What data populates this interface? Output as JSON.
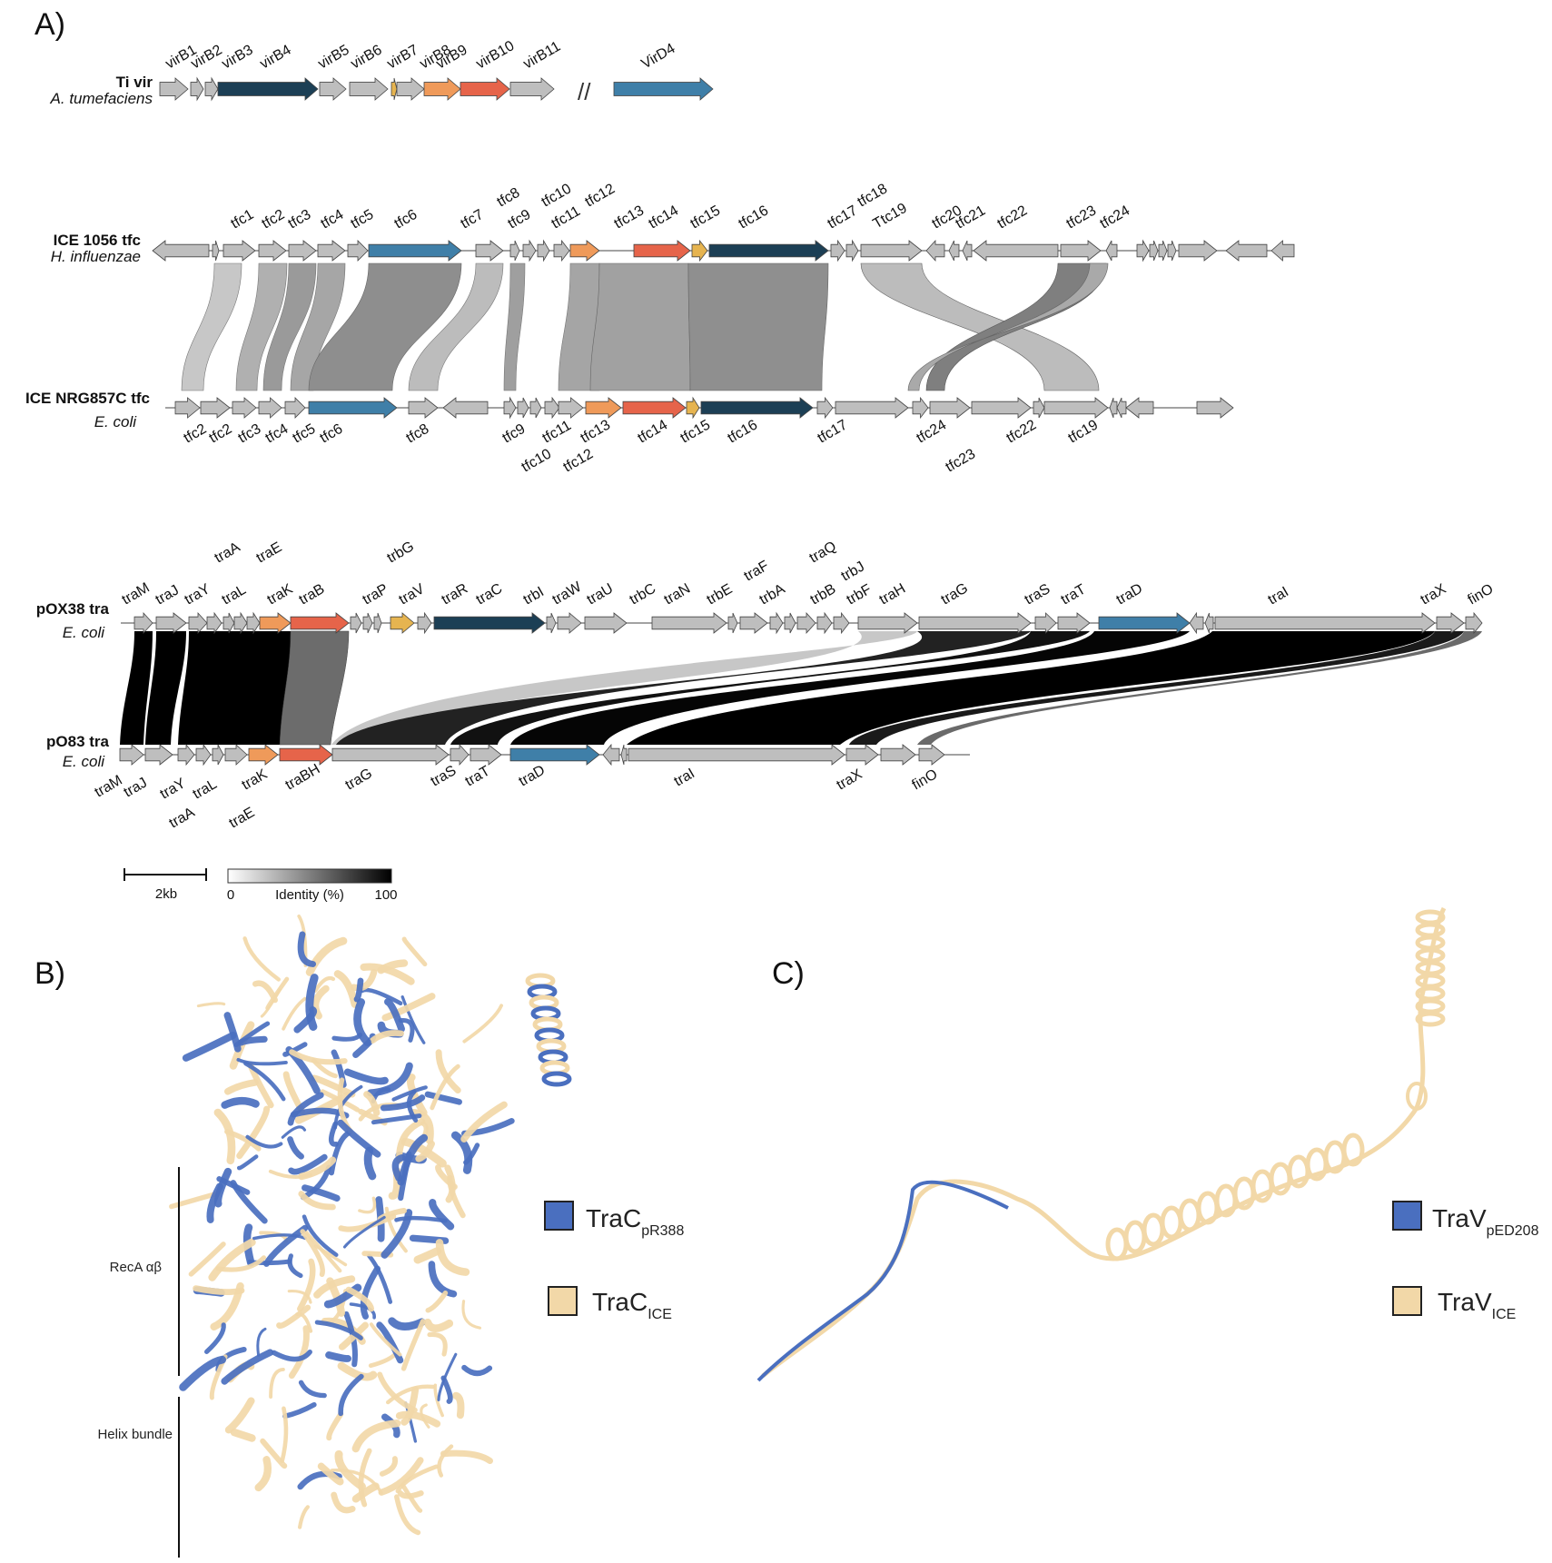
{
  "panels": {
    "a": "A)",
    "b": "B)",
    "c": "C)"
  },
  "colors": {
    "grey": "#bebebe",
    "dark": "#1c3f55",
    "blue": "#3f7fa8",
    "orange": "#ef9a5a",
    "red": "#e6644a",
    "yellow": "#e6b450",
    "tracICE": "#f2d8a8",
    "trac388": "#4a6fbf"
  },
  "tracks": [
    {
      "name": "Ti vir",
      "organism": "A. tumefaciens"
    },
    {
      "name": "ICE 1056 tfc",
      "organism": "H. influenzae"
    },
    {
      "name": "ICE NRG857C tfc",
      "organism": "E. coli"
    },
    {
      "name": "pOX38 tra",
      "organism": "E. coli"
    },
    {
      "name": "pO83 tra",
      "organism": "E. coli"
    }
  ],
  "labels_ti": [
    "virB1",
    "virB2",
    "virB3",
    "virB4",
    "virB5",
    "virB6",
    "virB7",
    "virB8",
    "virB9",
    "virB10",
    "virB11",
    "VirD4"
  ],
  "labels_ice1056": [
    "tfc1",
    "tfc2",
    "tfc3",
    "tfc4",
    "tfc5",
    "tfc6",
    "tfc7",
    "tfc8",
    "tfc9",
    "tfc10",
    "tfc11",
    "tfc12",
    "tfc13",
    "tfc14",
    "tfc15",
    "tfc16",
    "tfc17",
    "tfc18",
    "Ttc19",
    "tfc20",
    "tfc21",
    "tfc22",
    "tfc23",
    "tfc24"
  ],
  "labels_nrg": [
    "tfc2",
    "tfc2",
    "tfc3",
    "tfc4",
    "tfc5",
    "tfc6",
    "tfc8",
    "tfc9",
    "tfc10",
    "tfc11",
    "tfc12",
    "tfc13",
    "tfc14",
    "tfc15",
    "tfc16",
    "tfc17",
    "tfc24",
    "tfc23",
    "tfc22",
    "tfc19"
  ],
  "labels_pox": [
    "traM",
    "traJ",
    "traY",
    "traA",
    "traL",
    "traE",
    "traK",
    "traB",
    "traP",
    "trbG",
    "traV",
    "traR",
    "traC",
    "trbI",
    "traW",
    "traU",
    "trbC",
    "traN",
    "trbE",
    "traF",
    "trbA",
    "traQ",
    "trbB",
    "trbJ",
    "trbF",
    "traH",
    "traG",
    "traS",
    "traT",
    "traD",
    "traI",
    "traX",
    "finO"
  ],
  "labels_po83": [
    "traM",
    "traJ",
    "traY",
    "traL",
    "traA",
    "traE",
    "traK",
    "traBH",
    "traG",
    "traS",
    "traT",
    "traD",
    "traI",
    "traX",
    "finO"
  ],
  "scale": {
    "bar": "2kb",
    "min": "0",
    "mid": "Identity (%)",
    "max": "100"
  },
  "legend_b": [
    {
      "main": "TraC",
      "sub": "pR388"
    },
    {
      "main": "TraC",
      "sub": "ICE"
    }
  ],
  "legend_c": [
    {
      "main": "TraV",
      "sub": "pED208"
    },
    {
      "main": "TraV",
      "sub": "ICE"
    }
  ],
  "domains": {
    "recA": "RecA αβ",
    "helix": "Helix bundle"
  },
  "break_mark": "//"
}
